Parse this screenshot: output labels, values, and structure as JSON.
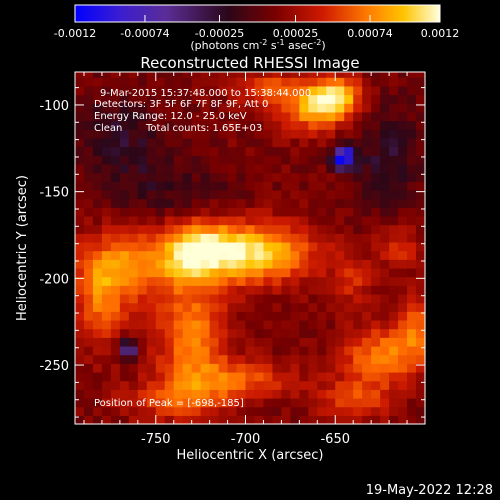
{
  "colorbar": {
    "ticks": [
      "-0.0012",
      "-0.00074",
      "-0.00025",
      "0.00025",
      "0.00074",
      "0.0012"
    ],
    "units": [
      "(photons cm",
      "-2",
      " s",
      "-1",
      " asec",
      "-2",
      ")"
    ]
  },
  "chart_data": {
    "type": "heatmap",
    "title": "Reconstructed RHESSI Image",
    "xlabel": "Heliocentric X (arcsec)",
    "ylabel": "Heliocentric Y (arcsec)",
    "x_ticks": [
      "-750",
      "-700",
      "-650"
    ],
    "y_ticks": [
      "-100",
      "-150",
      "-200",
      "-250"
    ],
    "x_tick_values": [
      -750,
      -700,
      -650
    ],
    "y_tick_values": [
      -100,
      -150,
      -200,
      -250
    ],
    "xlim": [
      -795,
      -600
    ],
    "ylim": [
      -284,
      -81
    ],
    "color_range": [
      -0.0012,
      0.0012
    ],
    "colormap": [
      "#0000ff",
      "#5a2d96",
      "#2b0718",
      "#7a0000",
      "#cc1a00",
      "#ff6a00",
      "#ffc400",
      "#ffffd8"
    ],
    "peak": [
      -698,
      -185
    ],
    "sources": [
      {
        "x": -698,
        "y": -185,
        "amp": 0.00125,
        "rx": 24,
        "ry": 12
      },
      {
        "x": -728,
        "y": -183,
        "amp": 0.0008,
        "rx": 12,
        "ry": 12
      },
      {
        "x": -765,
        "y": -192,
        "amp": 0.00075,
        "rx": 22,
        "ry": 14
      },
      {
        "x": -780,
        "y": -215,
        "amp": 0.0006,
        "rx": 10,
        "ry": 18
      },
      {
        "x": -730,
        "y": -233,
        "amp": 0.00075,
        "rx": 14,
        "ry": 22
      },
      {
        "x": -705,
        "y": -258,
        "amp": 0.0006,
        "rx": 22,
        "ry": 8
      },
      {
        "x": -740,
        "y": -270,
        "amp": 0.0005,
        "rx": 20,
        "ry": 8
      },
      {
        "x": -650,
        "y": -95,
        "amp": 0.0011,
        "rx": 10,
        "ry": 8
      },
      {
        "x": -665,
        "y": -102,
        "amp": 0.00075,
        "rx": 14,
        "ry": 10
      },
      {
        "x": -690,
        "y": -90,
        "amp": 0.00055,
        "rx": 12,
        "ry": 6
      },
      {
        "x": -625,
        "y": -245,
        "amp": 0.00075,
        "rx": 15,
        "ry": 12
      },
      {
        "x": -605,
        "y": -228,
        "amp": 0.0006,
        "rx": 8,
        "ry": 14
      },
      {
        "x": -640,
        "y": -270,
        "amp": 0.0005,
        "rx": 14,
        "ry": 8
      },
      {
        "x": -640,
        "y": -200,
        "amp": 0.0004,
        "rx": 8,
        "ry": 10
      },
      {
        "x": -615,
        "y": -182,
        "amp": 0.00045,
        "rx": 8,
        "ry": 8
      },
      {
        "x": -645,
        "y": -130,
        "amp": -0.001,
        "rx": 5,
        "ry": 5
      },
      {
        "x": -765,
        "y": -240,
        "amp": -0.0008,
        "rx": 4,
        "ry": 4
      },
      {
        "x": -620,
        "y": -130,
        "amp": -0.00035,
        "rx": 14,
        "ry": 22
      },
      {
        "x": -770,
        "y": -120,
        "amp": -0.00035,
        "rx": 18,
        "ry": 18
      },
      {
        "x": -740,
        "y": -150,
        "amp": -0.00025,
        "rx": 24,
        "ry": 12
      }
    ]
  },
  "annotations": {
    "time_range": "9-Mar-2015 15:37:48.000 to 15:38:44.000",
    "detectors": "Detectors: 3F 5F 6F 7F 8F 9F, Att 0",
    "energy": "Energy Range: 12.0 - 25.0 keV",
    "clean_label": "Clean",
    "total_counts": "Total counts: 1.65E+03",
    "peak_label": "Position of Peak = [-698,-185]"
  },
  "footer": {
    "date": "19-May-2022 12:28"
  }
}
